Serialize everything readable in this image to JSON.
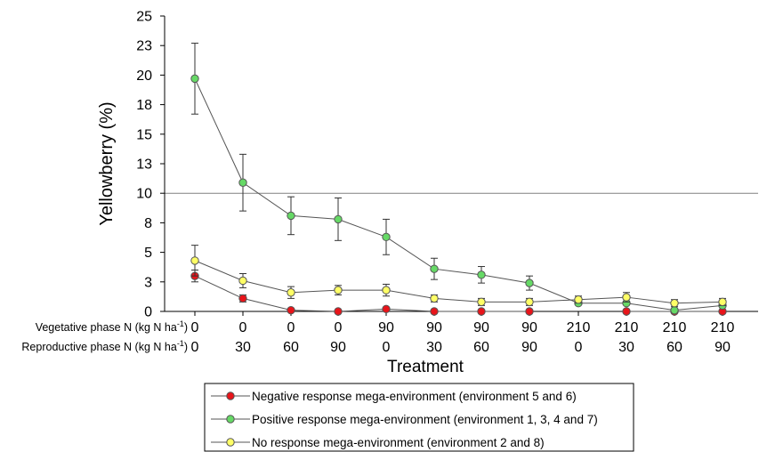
{
  "chart_data": {
    "type": "line",
    "ylabel": "Yellowberry (%)",
    "xlabel": "Treatment",
    "ylim": [
      0,
      25
    ],
    "y_tick_labels": [
      "0",
      "3",
      "5",
      "8",
      "10",
      "13",
      "15",
      "18",
      "20",
      "23",
      "25"
    ],
    "reference_line_y": 10,
    "row_labels": {
      "vegetative": {
        "prefix": "Vegetative phase N (kg N ha",
        "sup": "-1",
        "suffix": ")"
      },
      "reproductive": {
        "prefix": "Reproductive phase N (kg N ha",
        "sup": "-1",
        "suffix": ")"
      }
    },
    "vegetative_N": [
      "0",
      "0",
      "0",
      "0",
      "90",
      "90",
      "90",
      "90",
      "210",
      "210",
      "210",
      "210"
    ],
    "reproductive_N": [
      "0",
      "30",
      "60",
      "90",
      "0",
      "30",
      "60",
      "90",
      "0",
      "30",
      "60",
      "90"
    ],
    "series": [
      {
        "name": "Negative response mega-environment (environment 5 and 6)",
        "color": "#e8141a",
        "values": [
          3.0,
          1.1,
          0.1,
          0.0,
          0.2,
          0.0,
          0.0,
          0.0,
          null,
          0.0,
          0.0,
          0.0
        ],
        "errors": [
          0.5,
          0.3,
          0.0,
          0.0,
          0.0,
          0.0,
          0.0,
          0.0,
          null,
          0.0,
          0.0,
          0.0
        ]
      },
      {
        "name": "Positive response mega-environment (environment 1, 3, 4 and 7)",
        "color": "#66d966",
        "values": [
          19.7,
          10.9,
          8.1,
          7.8,
          6.3,
          3.6,
          3.1,
          2.4,
          0.7,
          0.7,
          0.1,
          0.5
        ],
        "errors": [
          3.0,
          2.4,
          1.6,
          1.8,
          1.5,
          0.9,
          0.7,
          0.6,
          0.0,
          0.0,
          0.0,
          0.0
        ]
      },
      {
        "name": "No response mega-environment (environment 2 and 8)",
        "color": "#ffff66",
        "values": [
          4.3,
          2.6,
          1.6,
          1.8,
          1.8,
          1.1,
          0.8,
          0.8,
          1.0,
          1.2,
          0.7,
          0.8
        ],
        "errors": [
          1.3,
          0.6,
          0.5,
          0.4,
          0.5,
          0.3,
          0.3,
          0.3,
          0.3,
          0.4,
          0.3,
          0.3
        ]
      }
    ],
    "legend_position": "bottom-center"
  }
}
